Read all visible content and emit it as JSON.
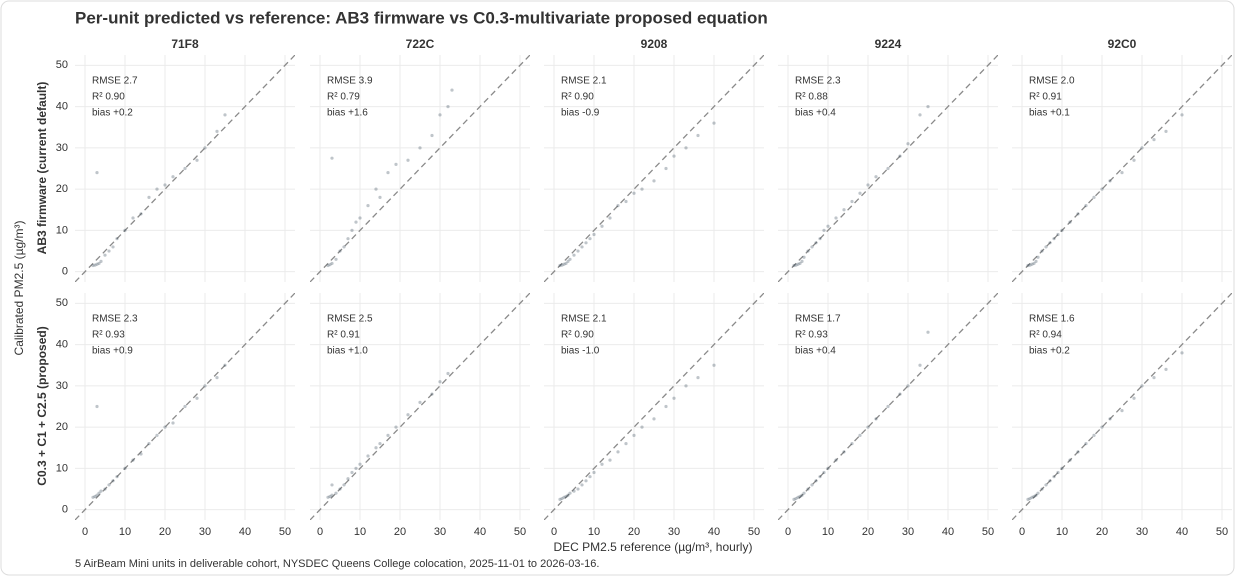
{
  "title": "Per-unit predicted vs reference: AB3 firmware vs C0.3-multivariate proposed equation",
  "x_label": "DEC PM2.5 reference (µg/m³, hourly)",
  "y_label": "Calibrated PM2.5 (µg/m³)",
  "row_labels": [
    "AB3 firmware (current default)",
    "C0.3 + C1 + C2.5 (proposed)"
  ],
  "caption": "5 AirBeam Mini units in deliverable cohort, NYSDEC Queens College colocation, 2025-11-01 to 2026-03-16.",
  "xlim": [
    -2.5,
    52.5
  ],
  "ylim": [
    -2.5,
    52.5
  ],
  "xticks": [
    0,
    10,
    20,
    30,
    40,
    50
  ],
  "yticks": [
    0,
    10,
    20,
    30,
    40,
    50
  ],
  "color": "#2c3e50",
  "chart_data": [
    {
      "type": "scatter",
      "title": "71F8",
      "stats": [
        "RMSE 2.7",
        "R² 0.90",
        "bias +0.2"
      ],
      "x": [
        2,
        2.5,
        3,
        3.5,
        4,
        5,
        6,
        7,
        8,
        10,
        12,
        14,
        16,
        18,
        20,
        22,
        25,
        28,
        30,
        33,
        35,
        3
      ],
      "y": [
        1.5,
        1.6,
        1.8,
        2,
        2.5,
        4,
        5,
        6,
        8,
        10,
        13,
        14,
        18,
        20,
        21,
        23,
        25,
        27,
        30,
        34,
        38,
        24
      ]
    },
    {
      "type": "scatter",
      "title": "722C",
      "stats": [
        "RMSE 3.9",
        "R² 0.79",
        "bias +1.6"
      ],
      "x": [
        2,
        2.5,
        3,
        4,
        5,
        6,
        7,
        8,
        9,
        10,
        12,
        14,
        15,
        17,
        19,
        22,
        25,
        28,
        30,
        32,
        33,
        3
      ],
      "y": [
        1.5,
        1.7,
        2,
        3,
        5,
        6,
        8,
        10,
        12,
        13,
        16,
        20,
        18,
        24,
        26,
        27,
        30,
        33,
        38,
        40,
        44,
        27.5
      ]
    },
    {
      "type": "scatter",
      "title": "9208",
      "stats": [
        "RMSE 2.1",
        "R² 0.90",
        "bias -0.9"
      ],
      "x": [
        1.5,
        2,
        2.5,
        3,
        3.5,
        4,
        5,
        6,
        7,
        8,
        9,
        10,
        12,
        14,
        16,
        18,
        20,
        22,
        25,
        28,
        30,
        33,
        36,
        40
      ],
      "y": [
        1.5,
        1.6,
        1.8,
        2,
        2.5,
        3,
        4,
        5,
        6,
        7,
        8,
        9,
        11,
        13,
        16,
        17,
        19,
        20,
        22,
        25,
        28,
        30,
        33,
        36
      ]
    },
    {
      "type": "scatter",
      "title": "9224",
      "stats": [
        "RMSE 2.3",
        "R² 0.88",
        "bias +0.4"
      ],
      "x": [
        1.5,
        2,
        2.5,
        3,
        3.5,
        4,
        5,
        6,
        7,
        8,
        9,
        10,
        12,
        14,
        16,
        18,
        20,
        22,
        25,
        28,
        30,
        33,
        35
      ],
      "y": [
        1.5,
        1.6,
        1.8,
        2,
        2.5,
        3.5,
        5,
        6,
        7,
        8,
        10,
        11,
        13,
        15,
        17,
        19,
        21,
        23,
        25,
        28,
        31,
        38,
        40
      ]
    },
    {
      "type": "scatter",
      "title": "92C0",
      "stats": [
        "RMSE 2.0",
        "R² 0.91",
        "bias +0.1"
      ],
      "x": [
        1.5,
        2,
        2.5,
        3,
        3.5,
        4,
        5,
        6,
        7,
        8,
        9,
        10,
        12,
        14,
        16,
        18,
        20,
        22,
        25,
        28,
        30,
        33,
        36,
        40
      ],
      "y": [
        1.5,
        1.6,
        1.8,
        2,
        2.5,
        3.5,
        5,
        6,
        7,
        8,
        9,
        10,
        12,
        14,
        16,
        18,
        20,
        22,
        24,
        27,
        30,
        32,
        34,
        38
      ]
    },
    {
      "type": "scatter",
      "stats": [
        "RMSE 2.3",
        "R² 0.93",
        "bias +0.9"
      ],
      "x": [
        2,
        2.5,
        3,
        3.5,
        4,
        5,
        6,
        7,
        8,
        10,
        12,
        14,
        16,
        18,
        20,
        22,
        25,
        28,
        30,
        33,
        35,
        3
      ],
      "y": [
        3,
        3.2,
        3.5,
        4,
        4.5,
        5,
        6,
        7,
        8,
        10,
        12,
        13.5,
        16,
        18,
        20,
        21,
        25,
        27,
        30,
        32,
        35,
        25
      ]
    },
    {
      "type": "scatter",
      "stats": [
        "RMSE 2.5",
        "R² 0.91",
        "bias +1.0"
      ],
      "x": [
        2,
        2.5,
        3,
        4,
        5,
        6,
        7,
        8,
        9,
        10,
        12,
        14,
        15,
        17,
        19,
        22,
        25,
        28,
        30,
        32,
        3
      ],
      "y": [
        3,
        3.2,
        3.5,
        4,
        5,
        6,
        7.5,
        9,
        10,
        11,
        13,
        15,
        16,
        18,
        20,
        23,
        26,
        28,
        31,
        33,
        6
      ]
    },
    {
      "type": "scatter",
      "stats": [
        "RMSE 2.1",
        "R² 0.90",
        "bias -1.0"
      ],
      "x": [
        1.5,
        2,
        2.5,
        3,
        3.5,
        4,
        5,
        6,
        7,
        8,
        9,
        10,
        12,
        14,
        16,
        18,
        20,
        22,
        25,
        28,
        30,
        33,
        36,
        40
      ],
      "y": [
        2.5,
        2.7,
        3,
        3.2,
        3.5,
        4,
        4.5,
        5,
        6,
        7,
        8,
        9,
        11,
        12,
        14,
        16,
        18,
        20,
        22,
        25,
        27,
        30,
        32,
        35
      ]
    },
    {
      "type": "scatter",
      "stats": [
        "RMSE 1.7",
        "R² 0.93",
        "bias +0.4"
      ],
      "x": [
        1.5,
        2,
        2.5,
        3,
        3.5,
        4,
        5,
        6,
        7,
        8,
        9,
        10,
        12,
        14,
        16,
        18,
        20,
        22,
        25,
        28,
        30,
        33,
        35
      ],
      "y": [
        2.5,
        2.7,
        3,
        3.2,
        3.5,
        4,
        5,
        6,
        7,
        8,
        9,
        10,
        12,
        14,
        16,
        18,
        20,
        22,
        25,
        28,
        30,
        35,
        43
      ]
    },
    {
      "type": "scatter",
      "stats": [
        "RMSE 1.6",
        "R² 0.94",
        "bias +0.2"
      ],
      "x": [
        1.5,
        2,
        2.5,
        3,
        3.5,
        4,
        5,
        6,
        7,
        8,
        9,
        10,
        12,
        14,
        16,
        18,
        20,
        22,
        25,
        28,
        30,
        33,
        36,
        40
      ],
      "y": [
        2.5,
        2.7,
        3,
        3.2,
        3.5,
        4,
        5,
        6,
        7,
        8,
        9,
        10,
        12,
        14,
        16,
        18,
        20,
        22,
        24,
        27,
        30,
        32,
        34,
        38
      ]
    }
  ]
}
